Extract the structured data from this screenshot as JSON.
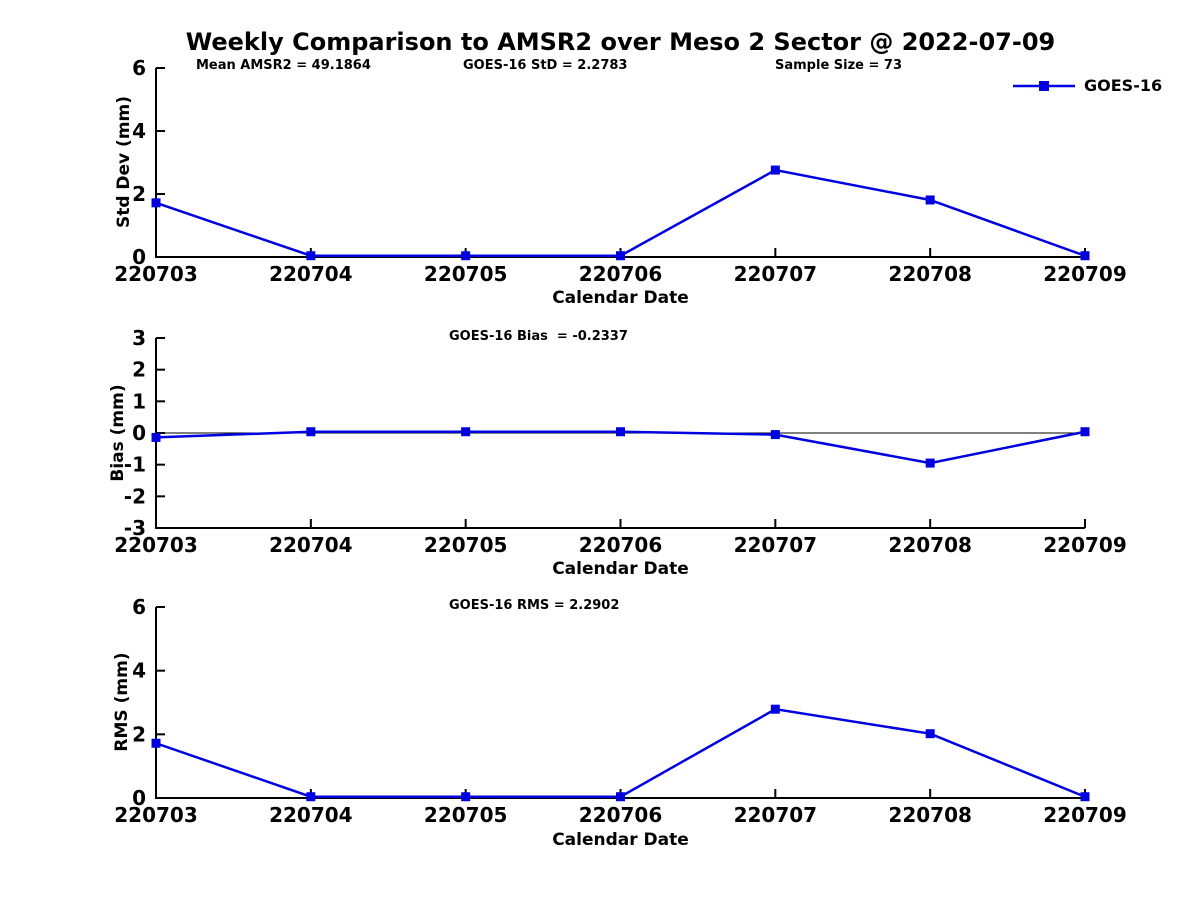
{
  "figure_title": "Weekly Comparison to AMSR2 over Meso 2 Sector @ 2022-07-09",
  "legend": {
    "label": "GOES-16"
  },
  "colors": {
    "line": "#0000e0",
    "marker": "#0000e0",
    "axis": "#000000",
    "zero_line": "#000000",
    "text": "#000000",
    "background": "#ffffff"
  },
  "chart_data": [
    {
      "type": "line",
      "id": "std-dev",
      "annotations": [
        "Mean AMSR2 = 49.1864",
        "GOES-16 StD = 2.2783",
        "Sample Size = 73"
      ],
      "categories": [
        "220703",
        "220704",
        "220705",
        "220706",
        "220707",
        "220708",
        "220709"
      ],
      "series": [
        {
          "name": "GOES-16",
          "values": [
            1.72,
            0.04,
            0.04,
            0.04,
            2.76,
            1.81,
            0.04
          ]
        }
      ],
      "xlabel": "Calendar Date",
      "ylabel": "Std Dev (mm)",
      "ylim": [
        0,
        6
      ],
      "yticks": [
        0,
        2,
        4,
        6
      ],
      "zero_line": false,
      "grid": false,
      "legend_position": "top-right",
      "marker": "square"
    },
    {
      "type": "line",
      "id": "bias",
      "annotations": [
        "GOES-16 Bias  = -0.2337"
      ],
      "categories": [
        "220703",
        "220704",
        "220705",
        "220706",
        "220707",
        "220708",
        "220709"
      ],
      "series": [
        {
          "name": "GOES-16",
          "values": [
            -0.14,
            0.04,
            0.04,
            0.04,
            -0.05,
            -0.95,
            0.04
          ]
        }
      ],
      "xlabel": "Calendar Date",
      "ylabel": "Bias (mm)",
      "ylim": [
        -3,
        3
      ],
      "yticks": [
        -3,
        -2,
        -1,
        0,
        1,
        2,
        3
      ],
      "zero_line": true,
      "grid": false,
      "marker": "square"
    },
    {
      "type": "line",
      "id": "rms",
      "annotations": [
        "GOES-16 RMS = 2.2902"
      ],
      "categories": [
        "220703",
        "220704",
        "220705",
        "220706",
        "220707",
        "220708",
        "220709"
      ],
      "series": [
        {
          "name": "GOES-16",
          "values": [
            1.72,
            0.04,
            0.04,
            0.04,
            2.79,
            2.02,
            0.04
          ]
        }
      ],
      "xlabel": "Calendar Date",
      "ylabel": "RMS (mm)",
      "ylim": [
        0,
        6
      ],
      "yticks": [
        0,
        2,
        4,
        6
      ],
      "zero_line": false,
      "grid": false,
      "marker": "square"
    }
  ]
}
